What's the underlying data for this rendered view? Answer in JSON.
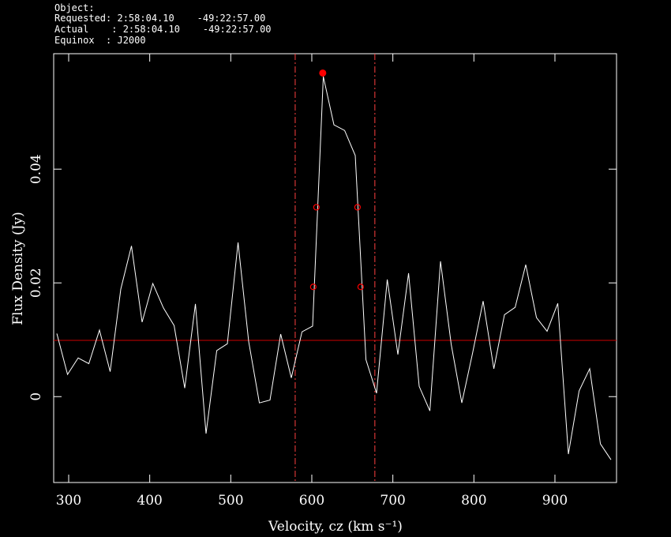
{
  "header": [
    "Object:",
    "Requested: 2:58:04.10    -49:22:57.00",
    "Actual    : 2:58:04.10    -49:22:57.00",
    "Equinox  : J2000"
  ],
  "chart_data": {
    "type": "line",
    "xlabel": "Velocity, cz (km s⁻¹)",
    "ylabel": "Flux Density (Jy)",
    "xlim": [
      281.5,
      976
    ],
    "xticks": [
      300,
      400,
      500,
      600,
      700,
      800,
      900
    ],
    "ylim": [
      -0.0151,
      0.0603
    ],
    "yticks": [
      0,
      0.02,
      0.04
    ],
    "series": [
      {
        "color": "#ffffff",
        "x": [
          285.4,
          298.6,
          311.7,
          324.9,
          338.0,
          351.2,
          364.3,
          377.5,
          390.6,
          403.8,
          416.9,
          430.1,
          443.2,
          456.4,
          469.5,
          482.7,
          495.8,
          509.0,
          522.1,
          535.3,
          548.4,
          561.6,
          574.7,
          587.9,
          601.0,
          614.2,
          627.3,
          640.5,
          653.6,
          666.8,
          679.9,
          693.1,
          706.2,
          719.4,
          732.5,
          745.7,
          758.8,
          772.0,
          785.1,
          798.3,
          811.4,
          824.6,
          837.7,
          850.9,
          864.0,
          877.2,
          890.3,
          903.5,
          916.6,
          929.8,
          942.9,
          956.1,
          969.2
        ],
        "values": [
          0.0111,
          0.0039,
          0.0068,
          0.0058,
          0.0117,
          0.0044,
          0.0189,
          0.0265,
          0.0131,
          0.0199,
          0.0156,
          0.0125,
          0.0015,
          0.0163,
          -0.0065,
          0.0081,
          0.0093,
          0.0271,
          0.0097,
          -0.0011,
          -0.0006,
          0.011,
          0.0033,
          0.0114,
          0.0124,
          0.0563,
          0.0478,
          0.0468,
          0.0424,
          0.0065,
          0.0006,
          0.0206,
          0.0074,
          0.0217,
          0.0018,
          -0.0025,
          0.0238,
          0.0092,
          -0.0011,
          0.0076,
          0.0168,
          0.0049,
          0.0144,
          0.0157,
          0.0232,
          0.0139,
          0.0115,
          0.0164,
          -0.0101,
          0.001,
          0.0049,
          -0.0083,
          -0.0111
        ]
      }
    ],
    "baseline": {
      "value": 0.0099,
      "color": "#cc0000"
    },
    "window": {
      "x": [
        579.5,
        677.8
      ],
      "color": "#ff4040"
    },
    "peak": {
      "x": 613.5,
      "y": 0.0569,
      "color": "#ff0000"
    },
    "width_points": {
      "color": "#ff0000",
      "x": [
        601.8,
        605.7,
        656.4,
        660.3
      ],
      "y": [
        0.0193,
        0.0333,
        0.0333,
        0.0193
      ]
    }
  }
}
